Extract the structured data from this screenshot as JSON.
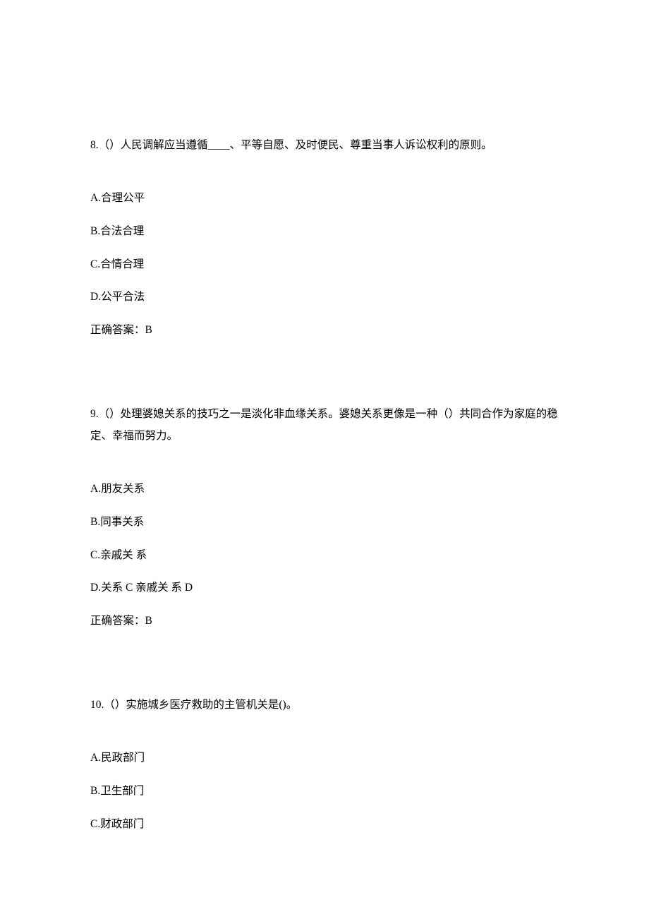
{
  "questions": [
    {
      "number": "8.",
      "text": "（）人民调解应当遵循____、平等自愿、及时便民、尊重当事人诉讼权利的原则。",
      "options": [
        "A.合理公平",
        "B.合法合理",
        "C.合情合理",
        "D.公平合法"
      ],
      "answer": "正确答案：B"
    },
    {
      "number": "9.",
      "text": "（）处理婆媳关系的技巧之一是淡化非血缘关系。婆媳关系更像是一种（）共同合作为家庭的稳定、幸福而努力。",
      "options": [
        "A.朋友关系",
        "B.同事关系",
        "C.亲戚关  系",
        "D.关系 C 亲戚关  系 D"
      ],
      "answer": "正确答案：B"
    },
    {
      "number": "10.",
      "text": "（）实施城乡医疗救助的主管机关是()。",
      "options": [
        "A.民政部门",
        "B.卫生部门",
        "C.财政部门"
      ],
      "answer": null
    }
  ]
}
